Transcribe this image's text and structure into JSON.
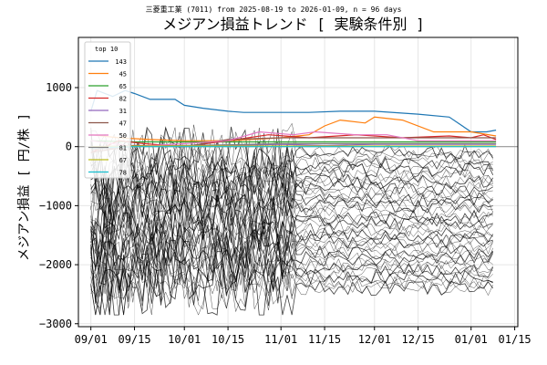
{
  "chart_data": {
    "type": "line",
    "suptitle": "三菱重工業 (7011) from 2025-08-19 to 2026-01-09, n = 96 days",
    "title": "メジアン損益トレンド [ 実験条件別 ]",
    "xlabel": "",
    "ylabel": "メジアン損益 [ 円/株 ]",
    "xlim": [
      "2025-08-28",
      "2026-01-16"
    ],
    "ylim": [
      -3050,
      1850
    ],
    "x_ticks": [
      "09/01",
      "09/15",
      "10/01",
      "10/15",
      "11/01",
      "11/15",
      "12/01",
      "12/15",
      "01/01",
      "01/15"
    ],
    "x_tick_dates": [
      "2025-09-01",
      "2025-09-15",
      "2025-10-01",
      "2025-10-15",
      "2025-11-01",
      "2025-11-15",
      "2025-12-01",
      "2025-12-15",
      "2026-01-01",
      "2026-01-15"
    ],
    "y_ticks": [
      1000,
      0,
      -1000,
      -2000,
      -3000
    ],
    "y_tick_labels": [
      "1000",
      "0",
      "−1000",
      "−2000",
      "−3000"
    ],
    "grid": true,
    "zero_line": true,
    "legend": {
      "title": "top 10",
      "position": "top-left"
    },
    "series": [
      {
        "name": "143",
        "color": "#1f77b4",
        "points": [
          [
            "2025-09-01",
            600
          ],
          [
            "2025-09-03",
            950
          ],
          [
            "2025-09-08",
            850
          ],
          [
            "2025-09-12",
            950
          ],
          [
            "2025-09-15",
            900
          ],
          [
            "2025-09-20",
            800
          ],
          [
            "2025-09-28",
            800
          ],
          [
            "2025-10-01",
            700
          ],
          [
            "2025-10-07",
            650
          ],
          [
            "2025-10-15",
            600
          ],
          [
            "2025-10-20",
            580
          ],
          [
            "2025-11-01",
            580
          ],
          [
            "2025-11-10",
            580
          ],
          [
            "2025-11-20",
            600
          ],
          [
            "2025-12-01",
            600
          ],
          [
            "2025-12-15",
            550
          ],
          [
            "2025-12-25",
            500
          ],
          [
            "2026-01-01",
            250
          ],
          [
            "2026-01-06",
            250
          ],
          [
            "2026-01-09",
            280
          ]
        ]
      },
      {
        "name": "45",
        "color": "#ff7f0e",
        "points": [
          [
            "2025-09-01",
            200
          ],
          [
            "2025-09-10",
            150
          ],
          [
            "2025-09-20",
            120
          ],
          [
            "2025-10-01",
            100
          ],
          [
            "2025-10-15",
            100
          ],
          [
            "2025-11-01",
            150
          ],
          [
            "2025-11-10",
            200
          ],
          [
            "2025-11-15",
            350
          ],
          [
            "2025-11-20",
            450
          ],
          [
            "2025-11-28",
            400
          ],
          [
            "2025-12-01",
            500
          ],
          [
            "2025-12-10",
            450
          ],
          [
            "2025-12-20",
            250
          ],
          [
            "2026-01-01",
            250
          ],
          [
            "2026-01-09",
            180
          ]
        ]
      },
      {
        "name": "65",
        "color": "#2ca02c",
        "points": [
          [
            "2025-09-01",
            100
          ],
          [
            "2025-09-15",
            80
          ],
          [
            "2025-10-01",
            80
          ],
          [
            "2025-10-15",
            80
          ],
          [
            "2025-11-01",
            80
          ],
          [
            "2025-11-15",
            80
          ],
          [
            "2025-12-01",
            80
          ],
          [
            "2025-12-15",
            80
          ],
          [
            "2026-01-01",
            80
          ],
          [
            "2026-01-09",
            80
          ]
        ]
      },
      {
        "name": "82",
        "color": "#d62728",
        "points": [
          [
            "2025-09-01",
            -100
          ],
          [
            "2025-09-10",
            100
          ],
          [
            "2025-09-18",
            50
          ],
          [
            "2025-10-01",
            0
          ],
          [
            "2025-10-15",
            100
          ],
          [
            "2025-10-28",
            200
          ],
          [
            "2025-11-10",
            150
          ],
          [
            "2025-11-25",
            200
          ],
          [
            "2025-12-10",
            150
          ],
          [
            "2025-12-25",
            180
          ],
          [
            "2026-01-01",
            150
          ],
          [
            "2026-01-05",
            200
          ],
          [
            "2026-01-09",
            120
          ]
        ]
      },
      {
        "name": "31",
        "color": "#9467bd",
        "points": [
          [
            "2025-09-01",
            0
          ],
          [
            "2025-09-15",
            20
          ],
          [
            "2025-10-01",
            0
          ],
          [
            "2025-10-15",
            20
          ],
          [
            "2025-11-01",
            40
          ],
          [
            "2025-11-15",
            20
          ],
          [
            "2025-12-01",
            40
          ],
          [
            "2025-12-15",
            40
          ],
          [
            "2026-01-01",
            40
          ],
          [
            "2026-01-09",
            40
          ]
        ]
      },
      {
        "name": "47",
        "color": "#8c564b",
        "points": [
          [
            "2025-09-01",
            -100
          ],
          [
            "2025-09-15",
            20
          ],
          [
            "2025-10-01",
            0
          ],
          [
            "2025-10-15",
            120
          ],
          [
            "2025-11-01",
            150
          ],
          [
            "2025-11-15",
            150
          ],
          [
            "2025-12-01",
            150
          ],
          [
            "2025-12-15",
            150
          ],
          [
            "2026-01-01",
            150
          ],
          [
            "2026-01-09",
            150
          ]
        ]
      },
      {
        "name": "50",
        "color": "#e377c2",
        "points": [
          [
            "2025-09-01",
            100
          ],
          [
            "2025-09-15",
            0
          ],
          [
            "2025-10-01",
            50
          ],
          [
            "2025-10-15",
            100
          ],
          [
            "2025-10-25",
            250
          ],
          [
            "2025-11-05",
            200
          ],
          [
            "2025-11-12",
            250
          ],
          [
            "2025-11-25",
            200
          ],
          [
            "2025-12-05",
            200
          ],
          [
            "2025-12-15",
            100
          ],
          [
            "2026-01-01",
            100
          ],
          [
            "2026-01-09",
            100
          ]
        ]
      },
      {
        "name": "81",
        "color": "#7f7f7f",
        "points": [
          [
            "2025-09-01",
            -50
          ],
          [
            "2025-09-15",
            0
          ],
          [
            "2025-10-01",
            20
          ],
          [
            "2025-10-15",
            30
          ],
          [
            "2025-11-01",
            50
          ],
          [
            "2025-11-15",
            50
          ],
          [
            "2025-12-01",
            50
          ],
          [
            "2025-12-15",
            50
          ],
          [
            "2026-01-01",
            50
          ],
          [
            "2026-01-09",
            50
          ]
        ]
      },
      {
        "name": "67",
        "color": "#bcbd22",
        "points": [
          [
            "2025-09-01",
            0
          ],
          [
            "2025-09-15",
            10
          ],
          [
            "2025-10-01",
            10
          ],
          [
            "2025-10-15",
            10
          ],
          [
            "2025-11-01",
            10
          ],
          [
            "2025-11-15",
            10
          ],
          [
            "2025-12-01",
            10
          ],
          [
            "2025-12-15",
            10
          ],
          [
            "2026-01-01",
            10
          ],
          [
            "2026-01-09",
            10
          ]
        ]
      },
      {
        "name": "78",
        "color": "#17becf",
        "points": [
          [
            "2025-09-01",
            -20
          ],
          [
            "2025-09-15",
            0
          ],
          [
            "2025-10-01",
            0
          ],
          [
            "2025-10-15",
            0
          ],
          [
            "2025-11-01",
            0
          ],
          [
            "2025-11-15",
            0
          ],
          [
            "2025-12-01",
            0
          ],
          [
            "2025-12-15",
            0
          ],
          [
            "2026-01-01",
            0
          ],
          [
            "2026-01-09",
            0
          ]
        ]
      }
    ],
    "background_series": {
      "color": "#000000",
      "description_levels": [
        -100,
        -200,
        -300,
        -400,
        -500,
        -600,
        -700,
        -800,
        -900,
        -1000,
        -1100,
        -1200,
        -1300,
        -1400,
        -1500,
        -1600,
        -1700,
        -1800,
        -1900,
        -2000,
        -2100,
        -2200,
        -2300,
        -2400
      ]
    }
  }
}
